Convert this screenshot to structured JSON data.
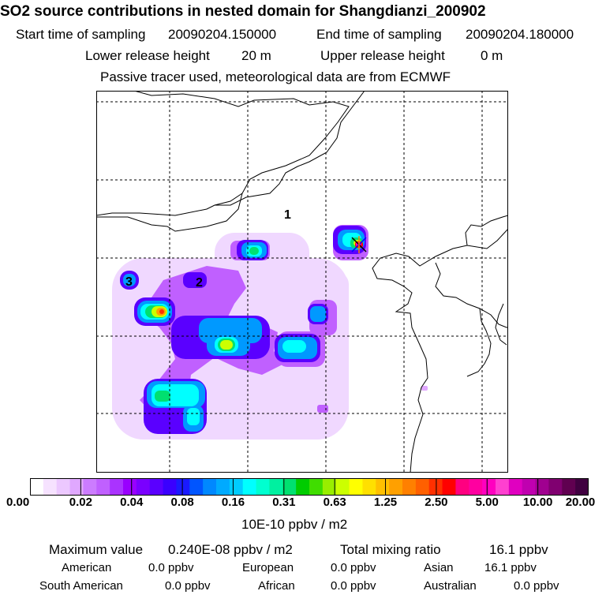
{
  "title": "SO2 source contributions in nested domain for Shangdianzi_200902",
  "header": {
    "start_label": "Start time of sampling",
    "start_value": "20090204.150000",
    "end_label": "End time of sampling",
    "end_value": "20090204.180000",
    "lower_label": "Lower release height",
    "lower_value": "20 m",
    "upper_label": "Upper release height",
    "upper_value": "0 m",
    "note": "Passive tracer used, meteorological data are from ECMWF"
  },
  "map": {
    "region_labels": [
      "1",
      "2",
      "3"
    ]
  },
  "colorbar": {
    "tick_labels": [
      "0.00",
      "0.02",
      "0.04",
      "0.08",
      "0.16",
      "0.31",
      "0.63",
      "1.25",
      "2.50",
      "5.00",
      "10.00",
      "20.00"
    ],
    "colors": [
      "#ffffff",
      "#f6e2ff",
      "#ecc8ff",
      "#e0a8ff",
      "#cc7cff",
      "#c060ff",
      "#aa33ff",
      "#9900ff",
      "#7a00ff",
      "#5a00ff",
      "#3a00ff",
      "#1a1aff",
      "#0055ff",
      "#0088ff",
      "#00aaff",
      "#00ccff",
      "#00ffff",
      "#00ffd0",
      "#00f0a0",
      "#00e070",
      "#00cc00",
      "#40dd00",
      "#99ee00",
      "#ccff00",
      "#ffff00",
      "#ffe000",
      "#ffc000",
      "#ffa000",
      "#ff8000",
      "#ff6000",
      "#ff3000",
      "#ff0000",
      "#ff0080",
      "#ff00a0",
      "#ff00c0",
      "#ff40d0",
      "#e000c0",
      "#c000b0",
      "#a00090",
      "#800070",
      "#600050",
      "#400040"
    ],
    "unit": "10E-10 ppbv / m2"
  },
  "summary": {
    "max_label": "Maximum value",
    "max_value": "0.240E-08 ppbv / m2",
    "total_label": "Total mixing ratio",
    "total_value": "16.1 ppbv",
    "regions": [
      {
        "name": "American",
        "value": "0.0 ppbv"
      },
      {
        "name": "European",
        "value": "0.0 ppbv"
      },
      {
        "name": "Asian",
        "value": "16.1 ppbv"
      },
      {
        "name": "South American",
        "value": "0.0 ppbv"
      },
      {
        "name": "African",
        "value": "0.0 ppbv"
      },
      {
        "name": "Australian",
        "value": "0.0 ppbv"
      }
    ]
  }
}
